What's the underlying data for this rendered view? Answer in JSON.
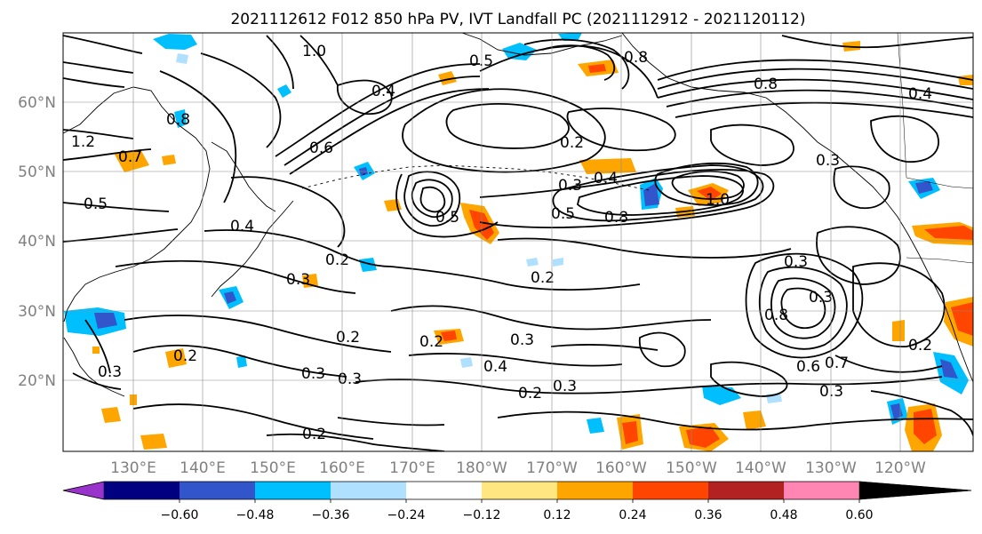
{
  "title": "2021112612 F012 850 hPa PV, IVT Landfall PC (2021112912 - 2021120112)",
  "latitude_labels": [
    "60°N",
    "50°N",
    "40°N",
    "30°N",
    "20°N"
  ],
  "longitude_labels": [
    "130°E",
    "140°E",
    "150°E",
    "160°E",
    "170°E",
    "180°W",
    "170°W",
    "160°W",
    "150°W",
    "140°W",
    "130°W",
    "120°W"
  ],
  "colorbar": {
    "tick_labels": [
      "−0.60",
      "−0.48",
      "−0.36",
      "−0.24",
      "−0.12",
      "0.12",
      "0.24",
      "0.36",
      "0.48",
      "0.60"
    ],
    "colors": [
      "#9933cc",
      "#000080",
      "#3355cc",
      "#00bfff",
      "#b0e0ff",
      "#ffffff",
      "#ffe680",
      "#ffa500",
      "#ff4500",
      "#b22222",
      "#ff85b3"
    ]
  },
  "contour_labels": [
    "1.0",
    "0.5",
    "0.4",
    "0.8",
    "1.2",
    "0.7",
    "0.5",
    "0.4",
    "0.3",
    "0.2",
    "0.6",
    "0.2",
    "0.3",
    "0.4",
    "0.5",
    "1.0",
    "0.8",
    "0.2",
    "0.3",
    "0.2",
    "0.3",
    "0.2",
    "0.3",
    "0.3",
    "0.2",
    "0.2",
    "0.3",
    "0.4",
    "0.2",
    "0.3",
    "0.4",
    "0.8",
    "0.3",
    "0.6",
    "0.7",
    "0.3",
    "0.2",
    "0.3",
    "0.8",
    "0.8",
    "0.5"
  ]
}
